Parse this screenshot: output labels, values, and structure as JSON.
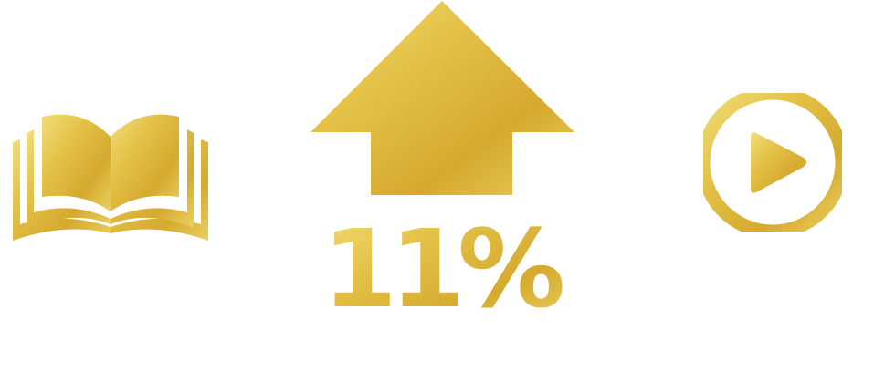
{
  "colors": {
    "gold_light": "#f4dc73",
    "gold_mid": "#e3bd3a",
    "gold_dark": "#c69a25",
    "background": "#ffffff"
  },
  "icons": {
    "left": "open-book-icon",
    "center": "up-arrow-icon",
    "right": "play-circle-icon"
  },
  "stat": {
    "value": "11%",
    "direction": "up"
  }
}
